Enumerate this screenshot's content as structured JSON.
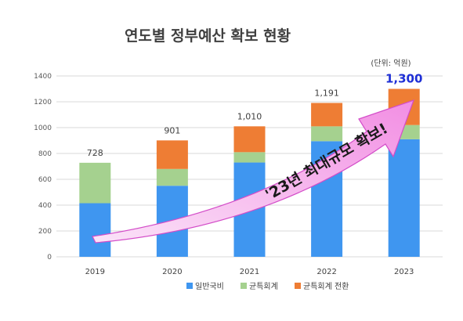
{
  "chart_data": {
    "type": "bar",
    "stacked": true,
    "title": "연도별 정부예산 확보 현황",
    "unit_label": "(단위: 억원)",
    "categories": [
      "2019",
      "2020",
      "2021",
      "2022",
      "2023"
    ],
    "series": [
      {
        "name": "일반국비",
        "color": "#3f96f0",
        "values": [
          415,
          550,
          730,
          895,
          910
        ]
      },
      {
        "name": "균특회계",
        "color": "#a5d18f",
        "values": [
          313,
          130,
          80,
          115,
          110
        ]
      },
      {
        "name": "균특회계 전환",
        "color": "#ee7d34",
        "values": [
          0,
          221,
          200,
          181,
          280
        ]
      }
    ],
    "totals": [
      "728",
      "901",
      "1,010",
      "1,191",
      "1,300"
    ],
    "highlight_total_color": "#1e2fd6",
    "ylim": [
      0,
      1400
    ],
    "yticks": [
      "0",
      "200",
      "400",
      "600",
      "800",
      "1000",
      "1200",
      "1400"
    ],
    "grid": true,
    "legend_position": "bottom",
    "annotation": "'23년 최대규모 확보!",
    "annotation_arrow_color": "#f6b6ef"
  }
}
